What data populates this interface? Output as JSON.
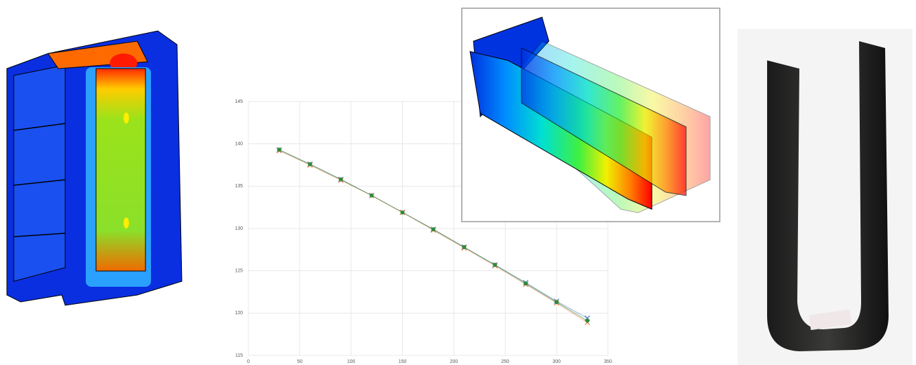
{
  "chart_data": {
    "type": "scatter",
    "x": [
      30,
      60,
      90,
      120,
      150,
      180,
      210,
      240,
      270,
      300,
      330
    ],
    "series": [
      {
        "color": "#4f81bd",
        "values": [
          139.3,
          137.6,
          135.8,
          133.9,
          131.9,
          129.9,
          127.8,
          125.7,
          123.6,
          121.4,
          119.4
        ]
      },
      {
        "color": "#e8804a",
        "values": [
          139.2,
          137.5,
          135.7,
          133.9,
          131.9,
          129.8,
          127.7,
          125.6,
          123.4,
          121.2,
          118.9
        ]
      },
      {
        "color": "#2e8b3a",
        "values": [
          139.3,
          137.6,
          135.8,
          133.9,
          131.9,
          129.9,
          127.8,
          125.7,
          123.5,
          121.3,
          119.1
        ]
      }
    ],
    "xlim": [
      0,
      350
    ],
    "xticks": [
      0,
      50,
      100,
      150,
      200,
      250,
      300,
      350
    ],
    "ylim": [
      115,
      145
    ],
    "yticks": [
      115,
      120,
      125,
      130,
      135,
      140,
      145
    ],
    "grid": true
  }
}
